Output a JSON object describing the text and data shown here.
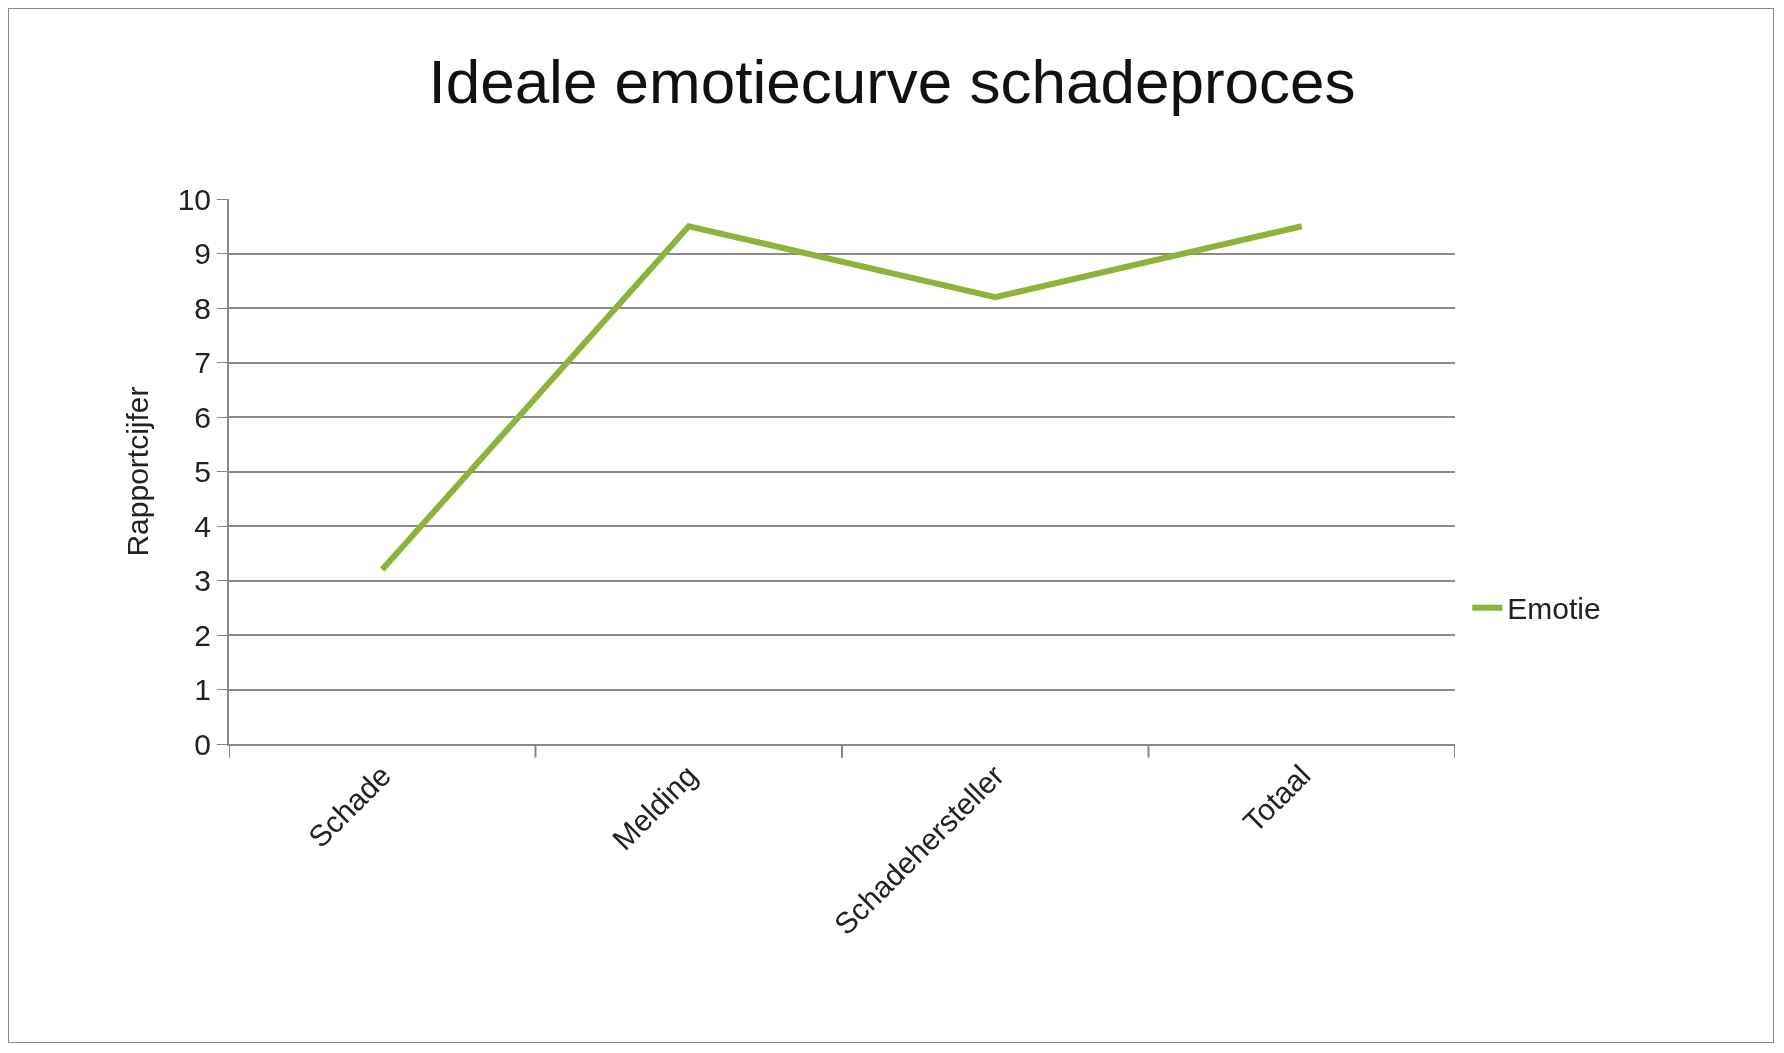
{
  "chart_data": {
    "type": "line",
    "title": "Ideale emotiecurve schadeproces",
    "ylabel": "Rapportcijfer",
    "categories": [
      "Schade",
      "Melding",
      "Schadehersteller",
      "Totaal"
    ],
    "series": [
      {
        "name": "Emotie",
        "color": "#8db33a",
        "values": [
          3.2,
          9.5,
          8.2,
          9.5
        ]
      }
    ],
    "ylim": [
      0,
      10
    ],
    "yticks": [
      0,
      1,
      2,
      3,
      4,
      5,
      6,
      7,
      8,
      9,
      10
    ],
    "grid": "y",
    "legend": "right",
    "marker": "none",
    "line_style": "solid"
  }
}
